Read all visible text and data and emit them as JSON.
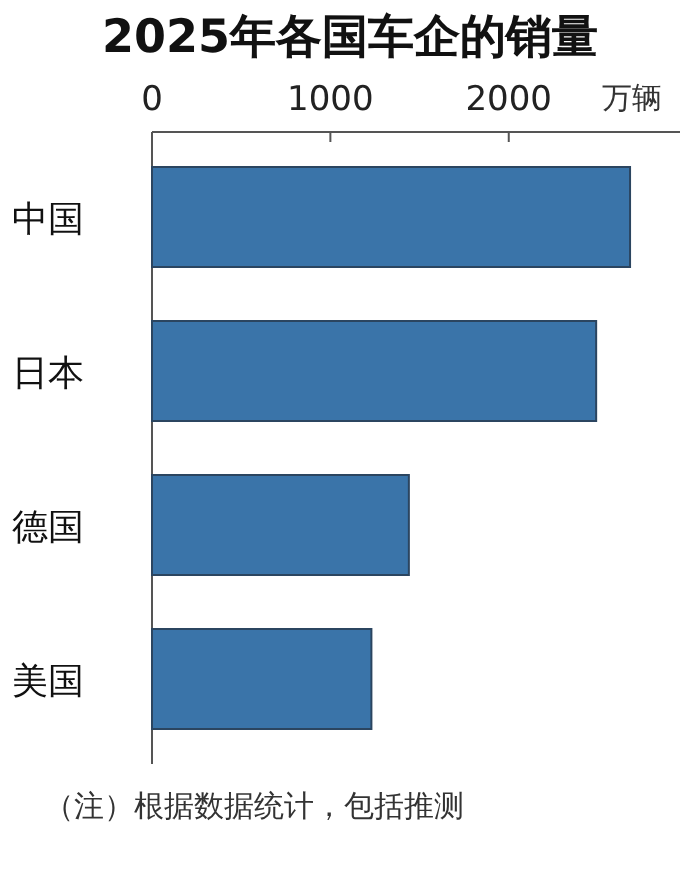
{
  "chart_data": {
    "type": "bar",
    "orientation": "horizontal",
    "title": "2025年各国车企的销量",
    "xlabel": "万辆",
    "categories": [
      "中国",
      "日本",
      "德国",
      "美国"
    ],
    "values": [
      2680,
      2490,
      1440,
      1230
    ],
    "color": "#3a74a9",
    "xlim": [
      0,
      2960
    ],
    "xticks": [
      0,
      1000,
      2000
    ],
    "annotations": [
      "（注）根据数据统计，包括推测"
    ]
  }
}
